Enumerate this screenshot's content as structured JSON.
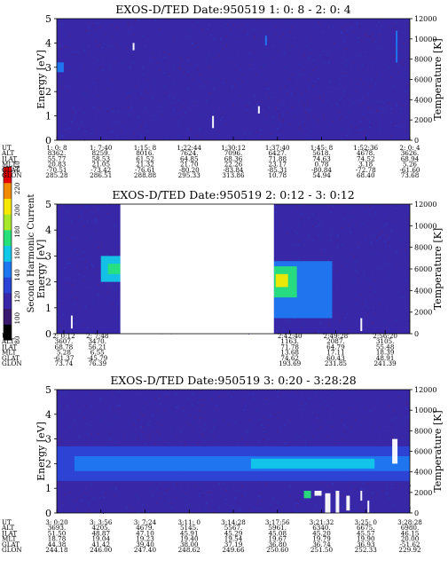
{
  "colorbar": {
    "label": "Second Harmonic Current",
    "ticks": [
      "80",
      "100",
      "120",
      "140",
      "160",
      "180",
      "200",
      "220",
      "240"
    ],
    "colors": [
      "#000000",
      "#3a1a6e",
      "#3828a8",
      "#2b44d6",
      "#1f78f0",
      "#12c8e8",
      "#27e07a",
      "#a8e82a",
      "#f6e800",
      "#f08a00",
      "#e40000"
    ]
  },
  "panels": [
    {
      "title": "EXOS-D/TED   Date:950519  1: 0: 8 - 2: 0: 4",
      "ylabel_left": "Energy [eV]",
      "ylabel_right": "Temperature [K]",
      "yticks_left": [
        "0",
        "1",
        "2",
        "3",
        "4",
        "5"
      ],
      "yticks_right": [
        "0",
        "2000",
        "4000",
        "6000",
        "8000",
        "10000",
        "12000"
      ],
      "row_labels": [
        "UT",
        "ALT",
        "ILAT",
        "MLT",
        "GLAT",
        "GLON"
      ],
      "columns": [
        [
          "1: 0: 8",
          "8362.",
          "55.77",
          "20.83",
          "-70.51",
          "285.28"
        ],
        [
          "1: 7:40",
          "8259.",
          "58.53",
          "21.05",
          "-73.42",
          "286.51"
        ],
        [
          "1:15: 8",
          "8016.",
          "61.52",
          "21.32",
          "-76.61",
          "288.88"
        ],
        [
          "1:22:44",
          "7624.",
          "64.85",
          "21.70",
          "-80.20",
          "295.33"
        ],
        [
          "1:30:12",
          "7096.",
          "68.36",
          "22.26",
          "-83.84",
          "313.86"
        ],
        [
          "1:37:40",
          "6427.",
          "71.88",
          "23.17",
          "-85.31",
          "10.78"
        ],
        [
          "1:45: 8",
          "5618.",
          "74.63",
          "0.78",
          "-80.84",
          "54.94"
        ],
        [
          "1:52:36",
          "4678.",
          "74.52",
          "3.18",
          "-72.78",
          "68.40"
        ],
        [
          "2: 0: 4",
          "3626.",
          "68.94",
          "5.26",
          "-61.60",
          "73.68"
        ]
      ]
    },
    {
      "title": "EXOS-D/TED   Date:950519  2: 0:12 - 3: 0:12",
      "ylabel_left": "Energy [eV]",
      "ylabel_right": "Temperature [K]",
      "yticks_left": [
        "0",
        "1",
        "2",
        "3",
        "4",
        "5"
      ],
      "yticks_right": [
        "0",
        "2000",
        "4000",
        "6000",
        "8000",
        "10000",
        "12000"
      ],
      "row_labels": [
        "UT",
        "ALT",
        "ILAT",
        "MLT",
        "GLAT",
        "GLON"
      ],
      "columns": [
        [
          "2: 0:12",
          "3607.",
          "68.78",
          "5.28",
          "-61.37",
          "73.74"
        ],
        [
          "2: 7:48",
          "3470.",
          "56.21",
          "6.55",
          "-45.79",
          "76.39"
        ],
        [
          "2:42:40",
          "1163.",
          "71.78",
          "13.68",
          "74.62",
          "193.69"
        ],
        [
          "2:49:28",
          "2087.",
          "64.79",
          "17.11",
          "60.43",
          "231.85"
        ],
        [
          "2:56:20",
          "3105.",
          "55.48",
          "18.39",
          "48.91",
          "241.39"
        ]
      ]
    },
    {
      "title": "EXOS-D/TED   Date:950519  3: 0:20 - 3:28:28",
      "ylabel_left": "Energy [eV]",
      "ylabel_right": "Temperature [K]",
      "yticks_left": [
        "0",
        "1",
        "2",
        "3",
        "4",
        "5"
      ],
      "yticks_right": [
        "0",
        "2000",
        "4000",
        "6000",
        "8000",
        "10000",
        "12000"
      ],
      "row_labels": [
        "UT",
        "ALT",
        "ILAT",
        "MLT",
        "GLAT",
        "GLON"
      ],
      "columns": [
        [
          "3: 0:20",
          "3693.",
          "51.50",
          "18.78",
          "44.38",
          "244.18"
        ],
        [
          "3: 3:56",
          "4205.",
          "48.87",
          "19.04",
          "41.42",
          "246.00"
        ],
        [
          "3: 7:24",
          "4679.",
          "47.10",
          "19.23",
          "39.40",
          "247.40"
        ],
        [
          "3:11: 0",
          "5145.",
          "45.91",
          "19.40",
          "38.00",
          "248.62"
        ],
        [
          "3:14:28",
          "5567.",
          "45.29",
          "19.54",
          "37.19",
          "249.66"
        ],
        [
          "3:17:56",
          "5961.",
          "45.08",
          "19.67",
          "36.80",
          "250.60"
        ],
        [
          "3:21:32",
          "6340.",
          "45.20",
          "19.79",
          "36.74",
          "251.50"
        ],
        [
          "3:25: 0",
          "6675.",
          "45.57",
          "19.90",
          "36.93",
          "252.33"
        ],
        [
          "3:28:28",
          "6980.",
          "46.15",
          "20.00",
          "-51.62",
          "229.92"
        ]
      ]
    }
  ],
  "chart_data": [
    {
      "type": "heatmap",
      "title": "EXOS-D/TED   Date:950519  1: 0: 8 - 2: 0: 4",
      "ylabel": "Energy [eV]",
      "ylim": [
        0,
        5
      ],
      "ylabel_right": "Temperature [K]",
      "ylim_right": [
        0,
        12000
      ],
      "x_ticks": [
        "1: 0: 8",
        "1: 7:40",
        "1:15: 8",
        "1:22:44",
        "1:30:12",
        "1:37:40",
        "1:45: 8",
        "1:52:36",
        "2: 0: 4"
      ],
      "colorbar_range": [
        80,
        240
      ],
      "background_level": 120,
      "data_gaps": [],
      "features": [
        {
          "x_frac": 0.0,
          "x_frac_end": 0.02,
          "e_min": 2.8,
          "e_max": 3.2,
          "level": 150
        },
        {
          "x_frac": 0.44,
          "x_frac_end": 0.445,
          "e_min": 0.5,
          "e_max": 1.0,
          "level": 240
        },
        {
          "x_frac": 0.57,
          "x_frac_end": 0.575,
          "e_min": 1.1,
          "e_max": 1.4,
          "level": 240
        },
        {
          "x_frac": 0.215,
          "x_frac_end": 0.22,
          "e_min": 3.7,
          "e_max": 4.0,
          "level": 240
        },
        {
          "x_frac": 0.59,
          "x_frac_end": 0.595,
          "e_min": 3.9,
          "e_max": 4.3,
          "level": 150
        },
        {
          "x_frac": 0.96,
          "x_frac_end": 0.965,
          "e_min": 3.2,
          "e_max": 4.5,
          "level": 150
        }
      ]
    },
    {
      "type": "heatmap",
      "title": "EXOS-D/TED   Date:950519  2: 0:12 - 3: 0:12",
      "ylabel": "Energy [eV]",
      "ylim": [
        0,
        5
      ],
      "ylabel_right": "Temperature [K]",
      "ylim_right": [
        0,
        12000
      ],
      "x_ticks": [
        "2: 0:12",
        "2: 7:48",
        "2:42:40",
        "2:49:28",
        "2:56:20"
      ],
      "colorbar_range": [
        80,
        240
      ],
      "background_level": 120,
      "data_gaps": [
        [
          0.18,
          0.615
        ]
      ],
      "features": [
        {
          "x_frac": 0.125,
          "x_frac_end": 0.18,
          "e_min": 2.0,
          "e_max": 3.0,
          "level": 160
        },
        {
          "x_frac": 0.145,
          "x_frac_end": 0.18,
          "e_min": 2.3,
          "e_max": 2.7,
          "level": 180
        },
        {
          "x_frac": 0.615,
          "x_frac_end": 0.78,
          "e_min": 0.6,
          "e_max": 2.8,
          "level": 140
        },
        {
          "x_frac": 0.615,
          "x_frac_end": 0.68,
          "e_min": 1.4,
          "e_max": 2.6,
          "level": 170
        },
        {
          "x_frac": 0.62,
          "x_frac_end": 0.655,
          "e_min": 1.8,
          "e_max": 2.3,
          "level": 200
        },
        {
          "x_frac": 0.04,
          "x_frac_end": 0.045,
          "e_min": 0.2,
          "e_max": 0.7,
          "level": 240
        },
        {
          "x_frac": 0.86,
          "x_frac_end": 0.865,
          "e_min": 0.1,
          "e_max": 0.6,
          "level": 240
        }
      ]
    },
    {
      "type": "heatmap",
      "title": "EXOS-D/TED   Date:950519  3: 0:20 - 3:28:28",
      "ylabel": "Energy [eV]",
      "ylim": [
        0,
        5
      ],
      "ylabel_right": "Temperature [K]",
      "ylim_right": [
        0,
        12000
      ],
      "x_ticks": [
        "3: 0:20",
        "3: 3:56",
        "3: 7:24",
        "3:11: 0",
        "3:14:28",
        "3:17:56",
        "3:21:32",
        "3:25: 0",
        "3:28:28"
      ],
      "colorbar_range": [
        80,
        240
      ],
      "background_level": 110,
      "data_gaps": [],
      "features": [
        {
          "x_frac": 0.0,
          "x_frac_end": 1.0,
          "e_min": 1.3,
          "e_max": 2.7,
          "level": 130
        },
        {
          "x_frac": 0.05,
          "x_frac_end": 1.0,
          "e_min": 1.7,
          "e_max": 2.3,
          "level": 145
        },
        {
          "x_frac": 0.55,
          "x_frac_end": 0.9,
          "e_min": 1.8,
          "e_max": 2.2,
          "level": 155
        },
        {
          "x_frac": 0.95,
          "x_frac_end": 0.965,
          "e_min": 2.0,
          "e_max": 3.0,
          "level": 240
        },
        {
          "x_frac": 0.7,
          "x_frac_end": 0.72,
          "e_min": 0.6,
          "e_max": 0.9,
          "level": 170
        },
        {
          "x_frac": 0.73,
          "x_frac_end": 0.75,
          "e_min": 0.7,
          "e_max": 0.9,
          "level": 240
        },
        {
          "x_frac": 0.76,
          "x_frac_end": 0.775,
          "e_min": 0.0,
          "e_max": 0.8,
          "level": 240
        },
        {
          "x_frac": 0.79,
          "x_frac_end": 0.8,
          "e_min": 0.0,
          "e_max": 0.9,
          "level": 240
        },
        {
          "x_frac": 0.82,
          "x_frac_end": 0.83,
          "e_min": 0.1,
          "e_max": 0.7,
          "level": 240
        },
        {
          "x_frac": 0.86,
          "x_frac_end": 0.865,
          "e_min": 0.5,
          "e_max": 0.9,
          "level": 240
        },
        {
          "x_frac": 0.88,
          "x_frac_end": 0.885,
          "e_min": 0.0,
          "e_max": 0.5,
          "level": 240
        }
      ]
    }
  ]
}
